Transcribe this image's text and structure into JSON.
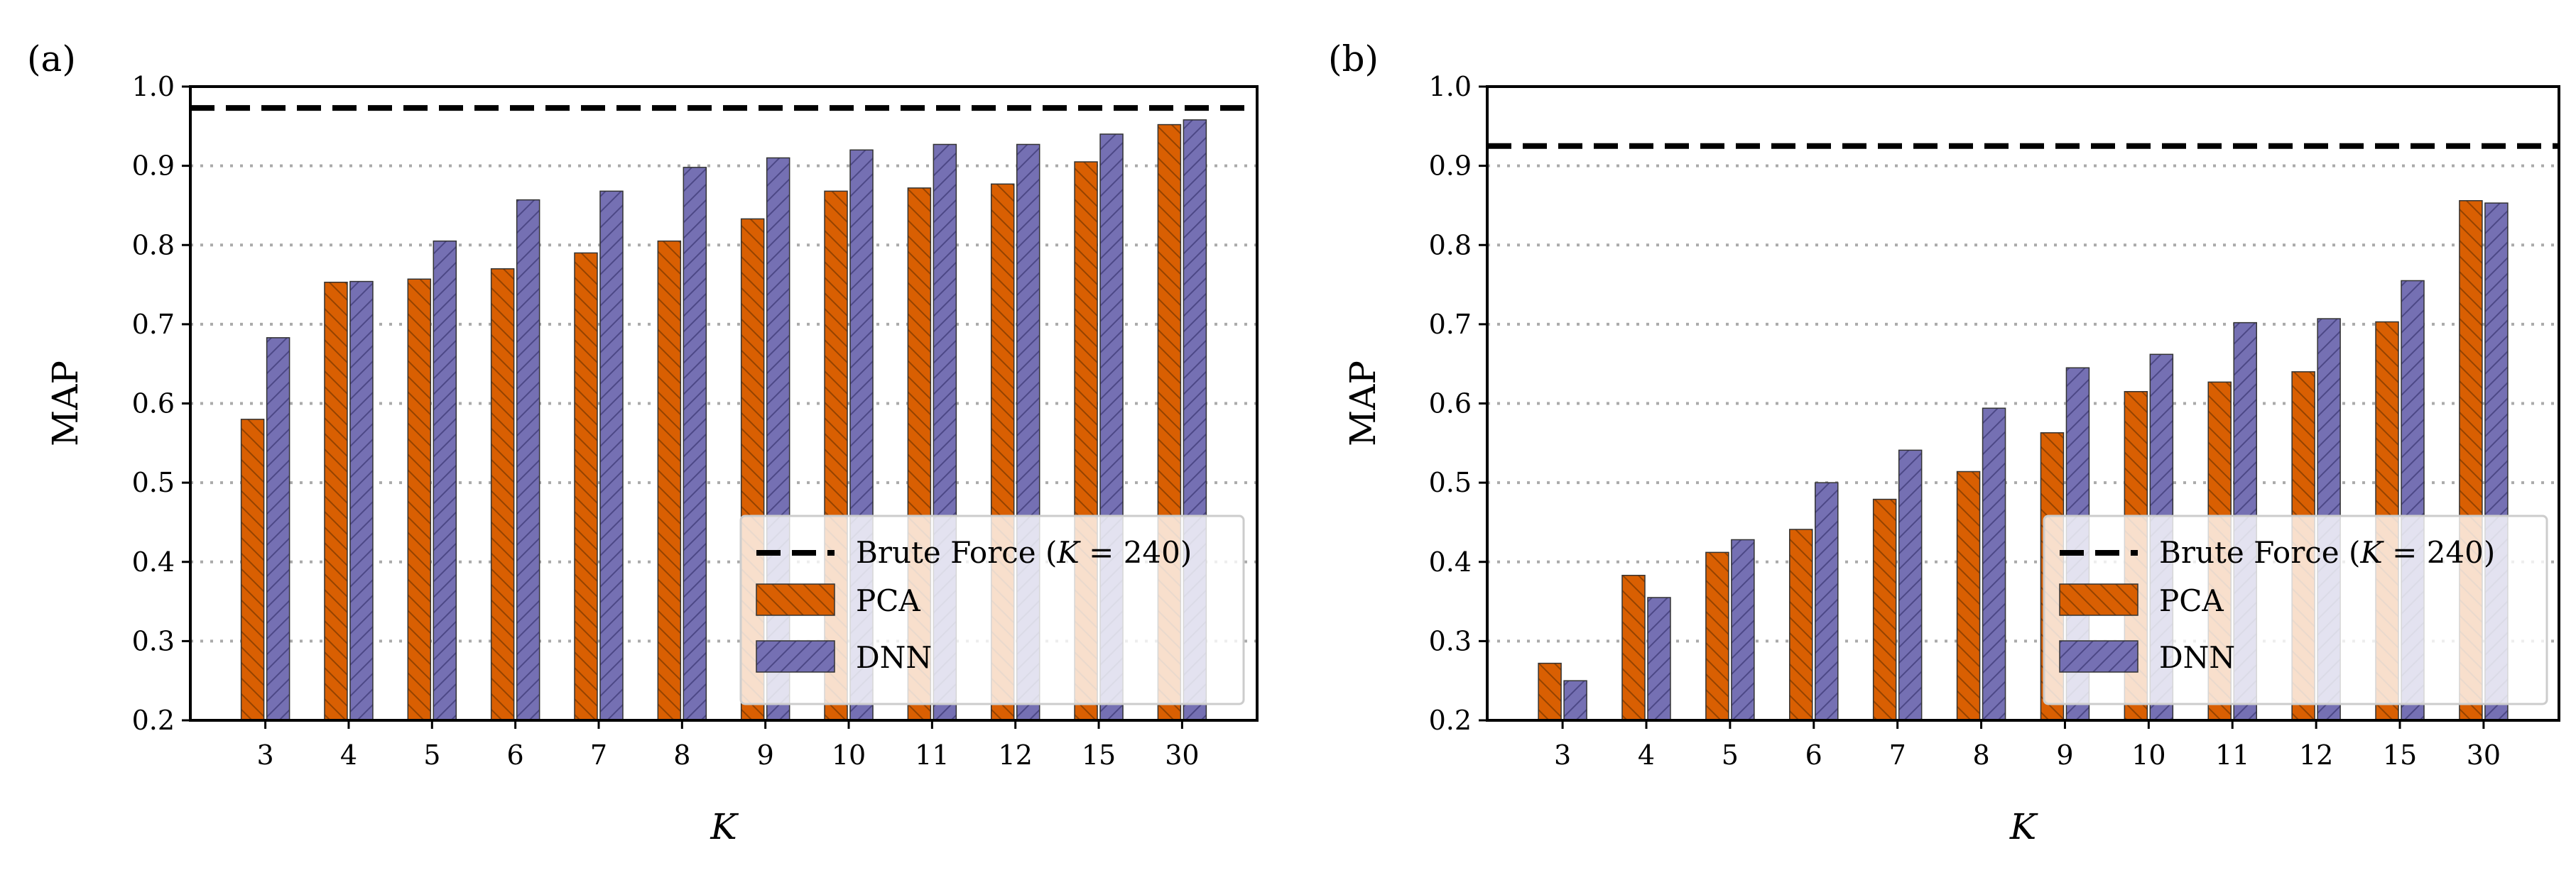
{
  "chart_data": [
    {
      "type": "bar",
      "panel_label": "(a)",
      "xlabel": "K",
      "ylabel": "MAP",
      "ylim": [
        0.2,
        1.0
      ],
      "yticks": [
        "0.2",
        "0.3",
        "0.4",
        "0.5",
        "0.6",
        "0.7",
        "0.8",
        "0.9",
        "1.0"
      ],
      "categories": [
        "3",
        "4",
        "5",
        "6",
        "7",
        "8",
        "9",
        "10",
        "11",
        "12",
        "15",
        "30"
      ],
      "series": [
        {
          "name": "PCA",
          "color": "#d95f02",
          "hatch": "backslash",
          "values": [
            0.58,
            0.753,
            0.757,
            0.77,
            0.79,
            0.805,
            0.833,
            0.868,
            0.872,
            0.877,
            0.905,
            0.952
          ]
        },
        {
          "name": "DNN",
          "color": "#7570b3",
          "hatch": "slash",
          "values": [
            0.683,
            0.754,
            0.805,
            0.857,
            0.868,
            0.898,
            0.91,
            0.92,
            0.927,
            0.927,
            0.94,
            0.958
          ]
        }
      ],
      "reference_line": {
        "label": "Brute Force (K = 240)",
        "value": 0.973,
        "style": "dashed",
        "color": "#000000"
      },
      "grid": "y-dotted",
      "legend_position": "bottom-right",
      "legend_labels": {
        "reference_prefix": "Brute Force (",
        "reference_var": "K",
        "reference_suffix": " = 240)"
      }
    },
    {
      "type": "bar",
      "panel_label": "(b)",
      "xlabel": "K",
      "ylabel": "MAP",
      "ylim": [
        0.2,
        1.0
      ],
      "yticks": [
        "0.2",
        "0.3",
        "0.4",
        "0.5",
        "0.6",
        "0.7",
        "0.8",
        "0.9",
        "1.0"
      ],
      "categories": [
        "3",
        "4",
        "5",
        "6",
        "7",
        "8",
        "9",
        "10",
        "11",
        "12",
        "15",
        "30"
      ],
      "series": [
        {
          "name": "PCA",
          "color": "#d95f02",
          "hatch": "backslash",
          "values": [
            0.272,
            0.383,
            0.412,
            0.441,
            0.479,
            0.514,
            0.563,
            0.615,
            0.627,
            0.64,
            0.703,
            0.856
          ]
        },
        {
          "name": "DNN",
          "color": "#7570b3",
          "hatch": "slash",
          "values": [
            0.25,
            0.355,
            0.428,
            0.5,
            0.541,
            0.594,
            0.645,
            0.662,
            0.702,
            0.707,
            0.755,
            0.853
          ]
        }
      ],
      "reference_line": {
        "label": "Brute Force (K = 240)",
        "value": 0.925,
        "style": "dashed",
        "color": "#000000"
      },
      "grid": "y-dotted",
      "legend_position": "bottom-right",
      "legend_labels": {
        "reference_prefix": "Brute Force (",
        "reference_var": "K",
        "reference_suffix": " = 240)"
      }
    }
  ]
}
